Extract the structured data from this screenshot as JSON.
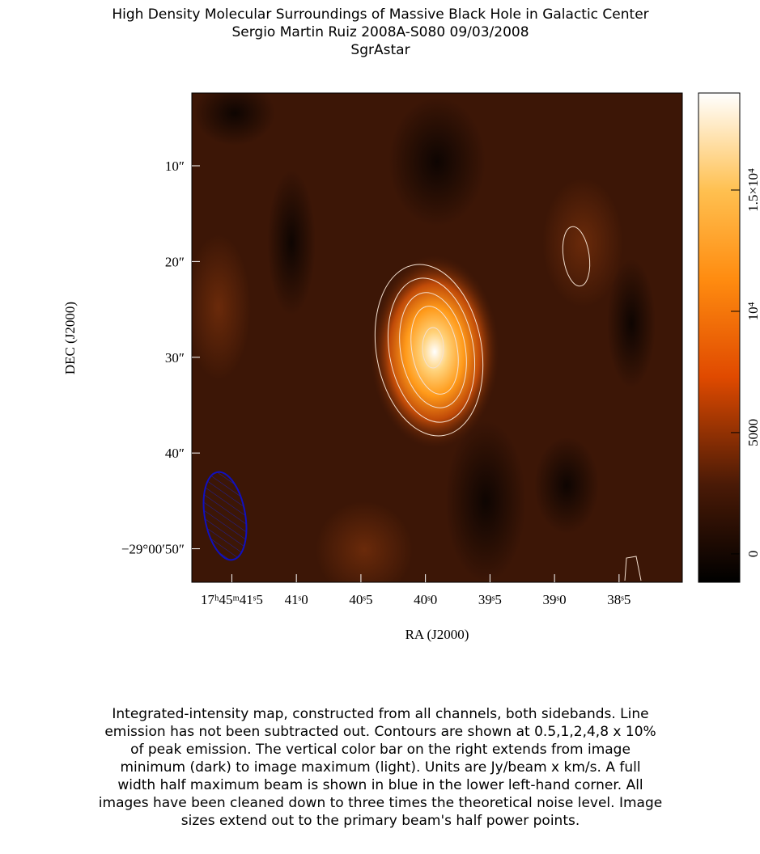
{
  "chart_data": {
    "type": "heatmap",
    "title": "High Density Molecular Surroundings of Massive Black Hole in Galactic Center",
    "subtitle": "Sergio Martin Ruiz   2008A-S080   09/03/2008",
    "source": "SgrAstar",
    "xlabel": "RA (J2000)",
    "ylabel": "DEC (J2000)",
    "xlim": [
      41.81,
      38.01
    ],
    "xticks": [
      {
        "value": 41.5,
        "label": "17ʰ45ᵐ41ˢ5"
      },
      {
        "value": 41.0,
        "label": "41ˢ0"
      },
      {
        "value": 40.5,
        "label": "40ˢ5"
      },
      {
        "value": 40.0,
        "label": "40ˢ0"
      },
      {
        "value": 39.5,
        "label": "39ˢ5"
      },
      {
        "value": 39.0,
        "label": "39ˢ0"
      },
      {
        "value": 38.5,
        "label": "38ˢ5"
      }
    ],
    "ylim": [
      2.4,
      53.5
    ],
    "yticks": [
      {
        "value": 10,
        "label": "10″"
      },
      {
        "value": 20,
        "label": "20″"
      },
      {
        "value": 30,
        "label": "30″"
      },
      {
        "value": 40,
        "label": "40″"
      },
      {
        "value": 50,
        "label": "−29°00′50″"
      }
    ],
    "colorbar": {
      "lim": [
        -1170,
        19000
      ],
      "ticks": [
        0,
        5000,
        {
          "value": 10000,
          "label": "10⁴"
        },
        {
          "value": 15000,
          "label": "1.5×10⁴"
        }
      ]
    },
    "caption": [
      "Integrated-intensity map, constructed from all channels, both sidebands.  Line",
      "emission has not been subtracted out.  Contours are shown at 0.5,1,2,4,8 x 10%",
      "of peak emission.  The vertical color bar on the right extends from image",
      "minimum (dark) to image maximum (light).  Units are Jy/beam x km/s.  A full",
      "width half maximum beam is shown in blue in the lower left-hand corner.  All",
      "images have been cleaned down to three times the theoretical noise level.  Image",
      "sizes extend out to the primary beam's half power points."
    ]
  }
}
